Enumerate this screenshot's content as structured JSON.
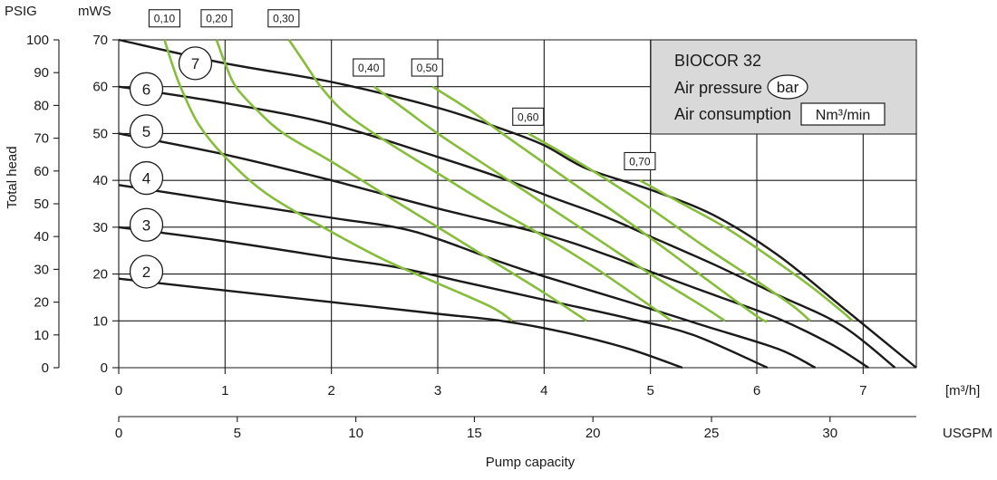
{
  "chart_data": {
    "type": "line",
    "title": "BIOCOR 32",
    "legend": {
      "title": "BIOCOR 32",
      "air_pressure_label": "Air pressure",
      "air_pressure_unit": "bar",
      "air_consumption_label": "Air consumption",
      "air_consumption_unit": "Nm³/min",
      "placement": "top-right"
    },
    "xlabel": "Pump capacity",
    "x_unit_primary": "[m³/h]",
    "x_unit_secondary": "USGPM",
    "ylabel": "Total head",
    "y_unit_primary": "mWS",
    "y_unit_secondary": "PSIG",
    "xlim": [
      0,
      7.5
    ],
    "ylim": [
      0,
      70
    ],
    "grid": true,
    "x_ticks": [
      "0",
      "1",
      "2",
      "3",
      "4",
      "5",
      "6",
      "7"
    ],
    "x_ticks_secondary": [
      "0",
      "5",
      "10",
      "15",
      "20",
      "25",
      "30"
    ],
    "x_ticks_secondary_values": [
      0,
      5,
      10,
      15,
      20,
      25,
      30
    ],
    "y_ticks": [
      "0",
      "10",
      "20",
      "30",
      "40",
      "50",
      "60",
      "70"
    ],
    "y_ticks_secondary": [
      "0",
      "10",
      "20",
      "30",
      "40",
      "50",
      "60",
      "70",
      "80",
      "90",
      "100"
    ],
    "y_ticks_secondary_values": [
      0,
      10,
      20,
      30,
      40,
      50,
      60,
      70,
      80,
      90,
      100
    ],
    "pressure_series": [
      {
        "name": "7",
        "label_at": [
          0.72,
          65
        ],
        "points": [
          [
            0,
            70
          ],
          [
            1,
            65
          ],
          [
            2,
            61
          ],
          [
            3,
            55.5
          ],
          [
            3.6,
            51
          ],
          [
            4,
            47.5
          ],
          [
            4.4,
            42.5
          ],
          [
            5,
            38
          ],
          [
            5.6,
            32.5
          ],
          [
            6.2,
            24
          ],
          [
            6.8,
            13
          ],
          [
            7.5,
            0
          ]
        ]
      },
      {
        "name": "6",
        "label_at": [
          0.26,
          59.5
        ],
        "points": [
          [
            0,
            60
          ],
          [
            1,
            56.5
          ],
          [
            2,
            52
          ],
          [
            3,
            45
          ],
          [
            3.6,
            40.5
          ],
          [
            4,
            37
          ],
          [
            4.6,
            32
          ],
          [
            5,
            28
          ],
          [
            5.6,
            22
          ],
          [
            6.2,
            15.5
          ],
          [
            6.8,
            9
          ],
          [
            7.3,
            0
          ]
        ]
      },
      {
        "name": "5",
        "label_at": [
          0.26,
          50.5
        ],
        "points": [
          [
            0,
            50
          ],
          [
            1,
            45.5
          ],
          [
            2,
            40
          ],
          [
            3,
            34
          ],
          [
            4,
            28.5
          ],
          [
            4.6,
            24
          ],
          [
            5,
            20.5
          ],
          [
            5.6,
            15.5
          ],
          [
            6.2,
            10.5
          ],
          [
            6.7,
            5
          ],
          [
            7.05,
            0
          ]
        ]
      },
      {
        "name": "4",
        "label_at": [
          0.26,
          40.5
        ],
        "points": [
          [
            0,
            39
          ],
          [
            1,
            35.5
          ],
          [
            2,
            32
          ],
          [
            2.6,
            30
          ],
          [
            3,
            27.5
          ],
          [
            3.6,
            22.5
          ],
          [
            4,
            19.5
          ],
          [
            4.8,
            14
          ],
          [
            5.5,
            9
          ],
          [
            6.2,
            4
          ],
          [
            6.55,
            0
          ]
        ]
      },
      {
        "name": "3",
        "label_at": [
          0.26,
          30.5
        ],
        "points": [
          [
            0,
            30
          ],
          [
            1,
            27
          ],
          [
            2,
            23.5
          ],
          [
            2.6,
            21.5
          ],
          [
            3.2,
            18.5
          ],
          [
            4,
            14.5
          ],
          [
            4.8,
            10.5
          ],
          [
            5.4,
            7
          ],
          [
            6.1,
            0
          ]
        ]
      },
      {
        "name": "2",
        "label_at": [
          0.26,
          20.5
        ],
        "points": [
          [
            0,
            19
          ],
          [
            1,
            16.5
          ],
          [
            2,
            14
          ],
          [
            3,
            11.5
          ],
          [
            3.6,
            10
          ],
          [
            4.2,
            7.5
          ],
          [
            4.8,
            4
          ],
          [
            5.3,
            0
          ]
        ]
      }
    ],
    "air_series": [
      {
        "name": "0,10",
        "label_at": [
          0.43,
          74.5
        ],
        "points": [
          [
            0.43,
            70
          ],
          [
            0.5,
            65
          ],
          [
            0.58,
            60
          ],
          [
            0.75,
            52
          ],
          [
            1,
            45
          ],
          [
            1.4,
            37
          ],
          [
            2,
            29
          ],
          [
            2.5,
            23
          ],
          [
            3,
            18
          ],
          [
            3.5,
            13
          ],
          [
            3.7,
            10
          ]
        ]
      },
      {
        "name": "0,20",
        "label_at": [
          0.92,
          74.5
        ],
        "points": [
          [
            0.92,
            70
          ],
          [
            1,
            65
          ],
          [
            1.1,
            60
          ],
          [
            1.3,
            55
          ],
          [
            1.55,
            50
          ],
          [
            2,
            44
          ],
          [
            2.5,
            37
          ],
          [
            3,
            30
          ],
          [
            3.5,
            23
          ],
          [
            4,
            16
          ],
          [
            4.4,
            10
          ]
        ]
      },
      {
        "name": "0,30",
        "label_at": [
          1.55,
          74.5
        ],
        "points": [
          [
            1.6,
            70
          ],
          [
            1.75,
            65
          ],
          [
            1.9,
            60
          ],
          [
            2.1,
            55
          ],
          [
            2.4,
            50
          ],
          [
            3,
            41.5
          ],
          [
            3.5,
            34.5
          ],
          [
            4,
            28
          ],
          [
            4.5,
            21
          ],
          [
            5.2,
            10
          ]
        ]
      },
      {
        "name": "0,40",
        "label_at": [
          2.35,
          64
        ],
        "points": [
          [
            2.4,
            60
          ],
          [
            2.7,
            55
          ],
          [
            3,
            50
          ],
          [
            3.5,
            42.5
          ],
          [
            4,
            35
          ],
          [
            4.5,
            27.5
          ],
          [
            5,
            20
          ],
          [
            5.5,
            13
          ],
          [
            5.7,
            10
          ]
        ]
      },
      {
        "name": "0,50",
        "label_at": [
          2.9,
          64
        ],
        "points": [
          [
            2.95,
            60
          ],
          [
            3.3,
            55
          ],
          [
            3.7,
            48.5
          ],
          [
            4.2,
            40.5
          ],
          [
            4.8,
            31
          ],
          [
            5.4,
            21
          ],
          [
            6,
            11
          ],
          [
            6.1,
            10
          ]
        ]
      },
      {
        "name": "0,60",
        "label_at": [
          3.85,
          53.5
        ],
        "points": [
          [
            3.85,
            50
          ],
          [
            4.2,
            45.5
          ],
          [
            4.6,
            40
          ],
          [
            5,
            34
          ],
          [
            5.5,
            26
          ],
          [
            6,
            18.5
          ],
          [
            6.35,
            13
          ],
          [
            6.5,
            10
          ]
        ]
      },
      {
        "name": "0,70",
        "label_at": [
          4.9,
          44
        ],
        "points": [
          [
            4.9,
            40
          ],
          [
            5.3,
            35
          ],
          [
            5.7,
            30
          ],
          [
            6.1,
            24
          ],
          [
            6.5,
            17.5
          ],
          [
            6.8,
            12
          ],
          [
            6.9,
            10
          ]
        ]
      }
    ]
  }
}
